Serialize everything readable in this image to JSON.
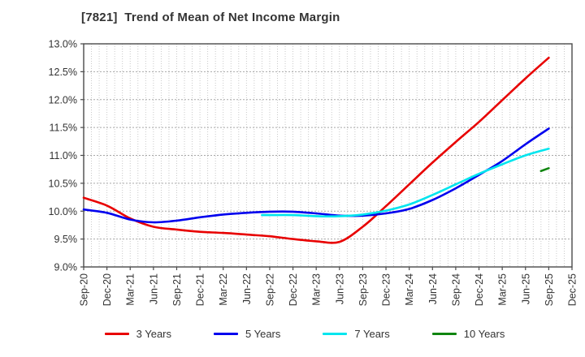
{
  "title": "[7821]  Trend of Mean of Net Income Margin",
  "chart_data": {
    "type": "line",
    "title": "[7821]  Trend of Mean of Net Income Margin",
    "xlabel": "",
    "ylabel": "",
    "ylim": [
      9.0,
      13.0
    ],
    "ytick_step": 0.5,
    "y_tick_labels": [
      "13.0%",
      "12.5%",
      "12.0%",
      "11.5%",
      "11.0%",
      "10.5%",
      "10.0%",
      "9.5%",
      "9.0%"
    ],
    "x_tick_labels": [
      "Sep-20",
      "Dec-20",
      "Mar-21",
      "Jun-21",
      "Sep-21",
      "Dec-21",
      "Mar-22",
      "Jun-22",
      "Sep-22",
      "Dec-22",
      "Mar-23",
      "Jun-23",
      "Sep-23",
      "Dec-23",
      "Mar-24",
      "Jun-24",
      "Sep-24",
      "Dec-24",
      "Mar-25",
      "Jun-25",
      "Sep-25",
      "Dec-25"
    ],
    "grid": {
      "vertical": "monthly dotted",
      "horizontal": "0.5% dotted"
    },
    "legend_position": "bottom-center",
    "series": [
      {
        "name": "3 Years",
        "color": "#e80000",
        "x": [
          "Sep-20",
          "Dec-20",
          "Mar-21",
          "Jun-21",
          "Sep-21",
          "Dec-21",
          "Mar-22",
          "Jun-22",
          "Sep-22",
          "Dec-22",
          "Mar-23",
          "Jun-23",
          "Sep-23",
          "Dec-23",
          "Mar-24",
          "Jun-24",
          "Sep-24",
          "Dec-24",
          "Mar-25",
          "Jun-25",
          "Sep-25"
        ],
        "values": [
          10.24,
          10.1,
          9.87,
          9.72,
          9.67,
          9.63,
          9.61,
          9.58,
          9.55,
          9.5,
          9.46,
          9.45,
          9.72,
          10.09,
          10.48,
          10.87,
          11.24,
          11.6,
          11.99,
          12.38,
          12.75
        ]
      },
      {
        "name": "5 Years",
        "color": "#0000ee",
        "x": [
          "Sep-20",
          "Dec-20",
          "Mar-21",
          "Jun-21",
          "Sep-21",
          "Dec-21",
          "Mar-22",
          "Jun-22",
          "Sep-22",
          "Dec-22",
          "Mar-23",
          "Jun-23",
          "Sep-23",
          "Dec-23",
          "Mar-24",
          "Jun-24",
          "Sep-24",
          "Dec-24",
          "Mar-25",
          "Jun-25",
          "Sep-25"
        ],
        "values": [
          10.03,
          9.97,
          9.85,
          9.8,
          9.83,
          9.89,
          9.94,
          9.97,
          9.99,
          9.99,
          9.96,
          9.92,
          9.92,
          9.96,
          10.04,
          10.2,
          10.41,
          10.65,
          10.9,
          11.2,
          11.48
        ]
      },
      {
        "name": "7 Years",
        "color": "#00e5ee",
        "x": [
          "Aug-22",
          "Sep-22",
          "Dec-22",
          "Mar-23",
          "Jun-23",
          "Sep-23",
          "Dec-23",
          "Mar-24",
          "Jun-24",
          "Sep-24",
          "Dec-24",
          "Mar-25",
          "Jun-25",
          "Sep-25"
        ],
        "values": [
          9.93,
          9.93,
          9.93,
          9.91,
          9.91,
          9.94,
          10.01,
          10.12,
          10.29,
          10.48,
          10.67,
          10.84,
          11.0,
          11.12
        ]
      },
      {
        "name": "10 Years",
        "color": "#108510",
        "x": [
          "Aug-25",
          "Sep-25"
        ],
        "values": [
          10.72,
          10.77
        ]
      }
    ]
  },
  "style": {
    "spine_color": "#4a4a4a",
    "grid_color_v": "#c4c4c4",
    "grid_color_h": "#a8a8a8",
    "tick_label_color": "#333333",
    "title_color": "#333333"
  }
}
